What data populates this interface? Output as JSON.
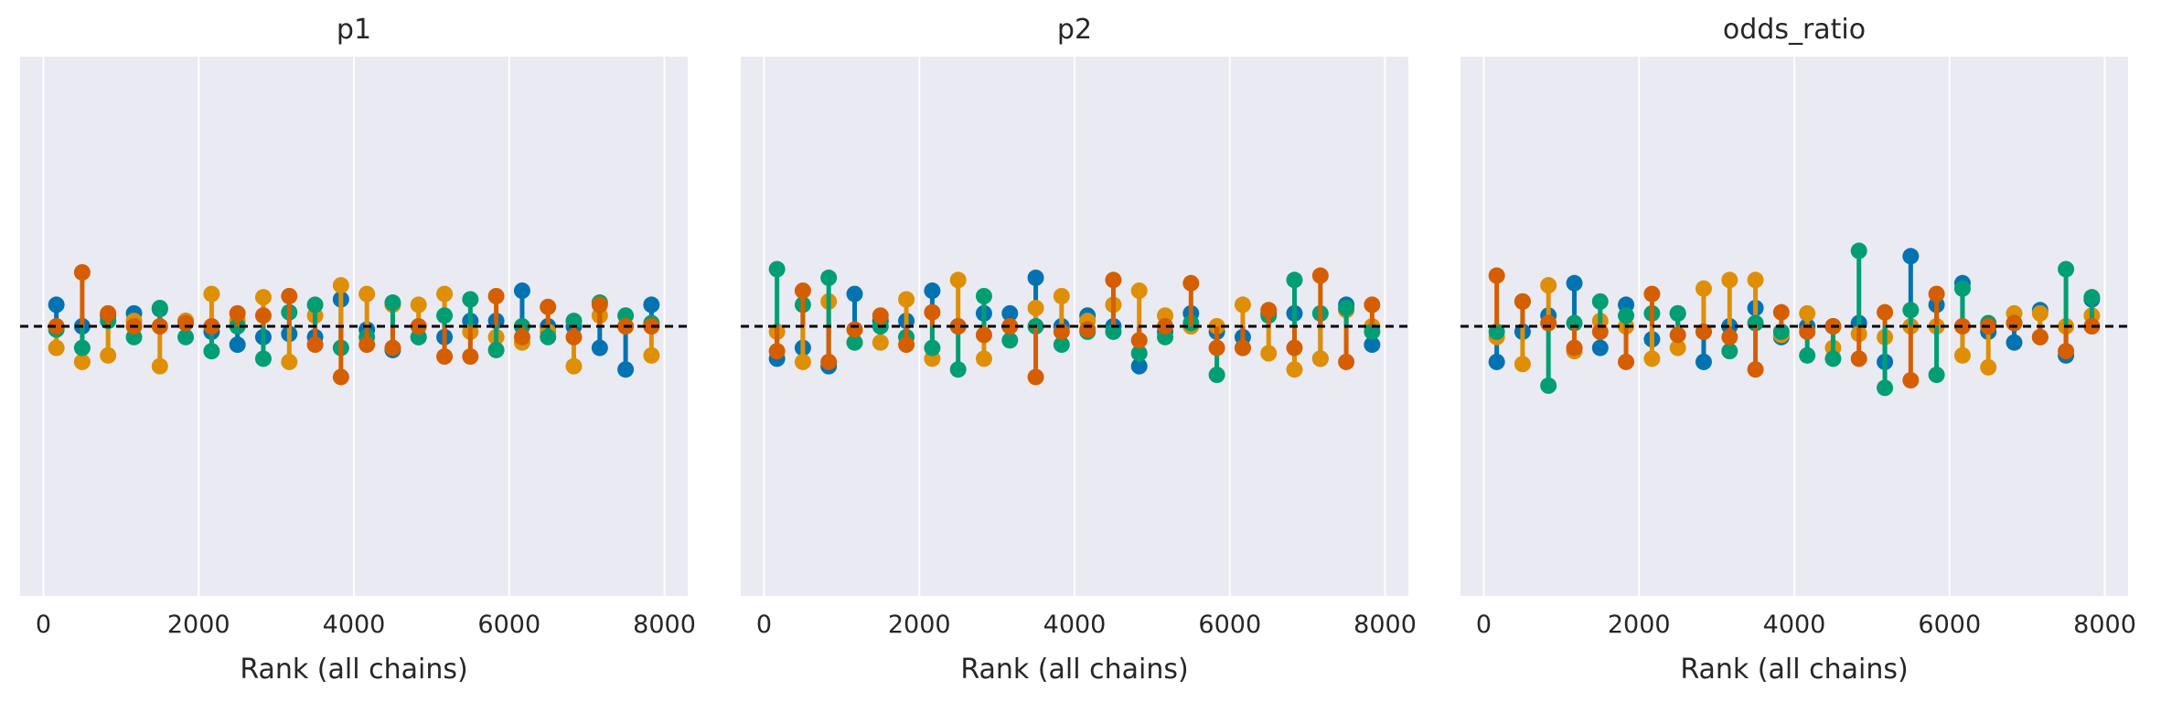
{
  "chart_data": [
    {
      "type": "rank_vlines",
      "title": "p1",
      "xlabel": "Rank (all chains)",
      "ylabel": "",
      "xlim": [
        -300,
        8300
      ],
      "ylim": [
        -2.5,
        2.5
      ],
      "x_ticks": [
        0,
        2000,
        4000,
        6000,
        8000
      ],
      "x_tick_labels": [
        "0",
        "2000",
        "4000",
        "6000",
        "8000"
      ],
      "grid": true,
      "reference_line": 0,
      "colors": [
        "#0173b2",
        "#de8f05",
        "#029e73",
        "#d55e00"
      ],
      "x": [
        167,
        500,
        833,
        1167,
        1500,
        1833,
        2167,
        2500,
        2833,
        3167,
        3500,
        3833,
        4167,
        4500,
        4833,
        5167,
        5500,
        5833,
        6167,
        6500,
        6833,
        7167,
        7500,
        7833
      ],
      "series": [
        {
          "values": [
            0.2,
            0.0,
            0.1,
            0.12,
            0.16,
            0.05,
            -0.05,
            -0.17,
            -0.1,
            -0.07,
            -0.1,
            0.25,
            -0.03,
            -0.22,
            -0.1,
            -0.1,
            0.05,
            0.05,
            0.33,
            0.0,
            0.0,
            -0.2,
            -0.4,
            0.2
          ]
        },
        {
          "values": [
            -0.2,
            -0.33,
            -0.27,
            0.05,
            -0.37,
            0.05,
            0.3,
            0.05,
            0.27,
            -0.33,
            0.1,
            0.38,
            0.3,
            0.2,
            0.2,
            0.3,
            -0.05,
            -0.1,
            -0.15,
            -0.05,
            -0.37,
            0.1,
            0.0,
            -0.27
          ]
        },
        {
          "values": [
            -0.03,
            -0.2,
            0.05,
            -0.1,
            0.17,
            -0.1,
            -0.23,
            0.0,
            -0.3,
            0.13,
            0.2,
            -0.2,
            -0.1,
            0.22,
            -0.1,
            0.1,
            0.25,
            -0.22,
            0.0,
            -0.1,
            0.05,
            0.22,
            0.1,
            0.03
          ]
        },
        {
          "values": [
            0.0,
            0.5,
            0.12,
            0.0,
            0.0,
            0.03,
            0.0,
            0.12,
            0.1,
            0.28,
            -0.17,
            -0.47,
            -0.17,
            -0.2,
            0.0,
            -0.28,
            -0.28,
            0.28,
            -0.1,
            0.18,
            -0.1,
            0.2,
            0.0,
            0.0
          ]
        }
      ]
    },
    {
      "type": "rank_vlines",
      "title": "p2",
      "xlabel": "Rank (all chains)",
      "ylabel": "",
      "xlim": [
        -300,
        8300
      ],
      "ylim": [
        -2.5,
        2.5
      ],
      "x_ticks": [
        0,
        2000,
        4000,
        6000,
        8000
      ],
      "x_tick_labels": [
        "0",
        "2000",
        "4000",
        "6000",
        "8000"
      ],
      "grid": true,
      "reference_line": 0,
      "colors": [
        "#0173b2",
        "#de8f05",
        "#029e73",
        "#d55e00"
      ],
      "x": [
        167,
        500,
        833,
        1167,
        1500,
        1833,
        2167,
        2500,
        2833,
        3167,
        3500,
        3833,
        4167,
        4500,
        4833,
        5167,
        5500,
        5833,
        6167,
        6500,
        6833,
        7167,
        7500,
        7833
      ],
      "series": [
        {
          "values": [
            -0.3,
            -0.2,
            -0.37,
            0.3,
            0.05,
            0.05,
            0.33,
            0.0,
            0.12,
            0.12,
            0.45,
            0.0,
            0.1,
            0.0,
            -0.37,
            -0.05,
            0.12,
            -0.05,
            -0.1,
            0.12,
            0.12,
            -0.3,
            0.2,
            -0.17
          ]
        },
        {
          "values": [
            -0.05,
            -0.33,
            0.23,
            -0.15,
            -0.15,
            0.25,
            -0.3,
            0.43,
            -0.3,
            0.0,
            0.17,
            0.28,
            0.05,
            0.2,
            0.33,
            0.1,
            0.0,
            0.0,
            0.2,
            -0.25,
            -0.4,
            -0.3,
            0.15,
            0.0
          ]
        },
        {
          "values": [
            0.53,
            0.2,
            0.45,
            -0.15,
            0.0,
            -0.1,
            -0.2,
            -0.4,
            0.28,
            -0.13,
            0.0,
            -0.17,
            -0.05,
            -0.05,
            -0.25,
            -0.1,
            0.03,
            -0.45,
            -0.2,
            0.1,
            0.43,
            0.12,
            0.17,
            -0.05
          ]
        },
        {
          "values": [
            -0.23,
            0.33,
            -0.33,
            -0.03,
            0.1,
            -0.17,
            0.13,
            0.0,
            -0.08,
            0.0,
            -0.47,
            -0.05,
            -0.03,
            0.43,
            -0.13,
            0.0,
            0.4,
            -0.2,
            -0.2,
            0.15,
            -0.2,
            0.47,
            -0.33,
            0.2
          ]
        }
      ]
    },
    {
      "type": "rank_vlines",
      "title": "odds_ratio",
      "xlabel": "Rank (all chains)",
      "ylabel": "",
      "xlim": [
        -300,
        8300
      ],
      "ylim": [
        -2.5,
        2.5
      ],
      "x_ticks": [
        0,
        2000,
        4000,
        6000,
        8000
      ],
      "x_tick_labels": [
        "0",
        "2000",
        "4000",
        "6000",
        "8000"
      ],
      "grid": true,
      "reference_line": 0,
      "colors": [
        "#0173b2",
        "#de8f05",
        "#029e73",
        "#d55e00"
      ],
      "x": [
        167,
        500,
        833,
        1167,
        1500,
        1833,
        2167,
        2500,
        2833,
        3167,
        3500,
        3833,
        4167,
        4500,
        4833,
        5167,
        5500,
        5833,
        6167,
        6500,
        6833,
        7167,
        7500,
        7833
      ],
      "series": [
        {
          "values": [
            -0.33,
            -0.05,
            0.1,
            0.4,
            -0.2,
            0.2,
            -0.12,
            0.12,
            -0.33,
            0.0,
            0.17,
            -0.1,
            0.0,
            0.0,
            0.03,
            -0.33,
            0.65,
            0.2,
            0.4,
            -0.05,
            -0.15,
            0.15,
            -0.27,
            0.25
          ]
        },
        {
          "values": [
            -0.1,
            -0.35,
            0.38,
            -0.23,
            0.05,
            0.0,
            -0.3,
            -0.2,
            0.35,
            0.43,
            0.43,
            -0.08,
            0.12,
            -0.2,
            -0.07,
            -0.1,
            0.0,
            0.0,
            -0.27,
            -0.38,
            0.12,
            0.12,
            0.0,
            0.1
          ]
        },
        {
          "values": [
            -0.05,
            0.23,
            -0.55,
            0.03,
            0.23,
            0.1,
            0.12,
            0.12,
            -0.05,
            -0.23,
            0.03,
            -0.05,
            -0.27,
            -0.3,
            0.7,
            -0.57,
            0.15,
            -0.45,
            0.35,
            0.03,
            0.03,
            -0.1,
            0.53,
            0.27
          ]
        },
        {
          "values": [
            0.47,
            0.23,
            0.03,
            -0.2,
            -0.05,
            -0.33,
            0.3,
            -0.08,
            -0.05,
            -0.1,
            -0.4,
            0.13,
            -0.05,
            0.0,
            -0.3,
            0.13,
            -0.5,
            0.3,
            0.0,
            0.0,
            0.03,
            -0.1,
            -0.23,
            0.0
          ]
        }
      ]
    }
  ]
}
